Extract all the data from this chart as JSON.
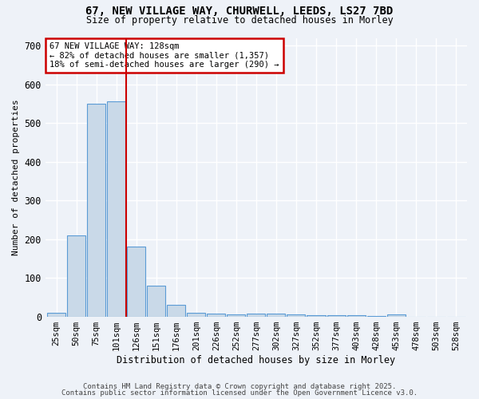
{
  "title_line1": "67, NEW VILLAGE WAY, CHURWELL, LEEDS, LS27 7BD",
  "title_line2": "Size of property relative to detached houses in Morley",
  "xlabel": "Distribution of detached houses by size in Morley",
  "ylabel": "Number of detached properties",
  "bar_labels": [
    "25sqm",
    "50sqm",
    "75sqm",
    "101sqm",
    "126sqm",
    "151sqm",
    "176sqm",
    "201sqm",
    "226sqm",
    "252sqm",
    "277sqm",
    "302sqm",
    "327sqm",
    "352sqm",
    "377sqm",
    "403sqm",
    "428sqm",
    "453sqm",
    "478sqm",
    "503sqm",
    "528sqm"
  ],
  "bar_values": [
    10,
    210,
    550,
    555,
    180,
    80,
    30,
    10,
    8,
    5,
    8,
    8,
    5,
    3,
    3,
    3,
    1,
    5,
    0,
    0,
    0
  ],
  "bar_color": "#c9d9e8",
  "bar_edge_color": "#5b9bd5",
  "red_line_x": 3.5,
  "red_line_color": "#cc0000",
  "annotation_text": "67 NEW VILLAGE WAY: 128sqm\n← 82% of detached houses are smaller (1,357)\n18% of semi-detached houses are larger (290) →",
  "annotation_box_color": "#ffffff",
  "annotation_box_edge": "#cc0000",
  "ylim": [
    0,
    720
  ],
  "yticks": [
    0,
    100,
    200,
    300,
    400,
    500,
    600,
    700
  ],
  "bg_color": "#eef2f8",
  "grid_color": "#ffffff",
  "footer_line1": "Contains HM Land Registry data © Crown copyright and database right 2025.",
  "footer_line2": "Contains public sector information licensed under the Open Government Licence v3.0."
}
